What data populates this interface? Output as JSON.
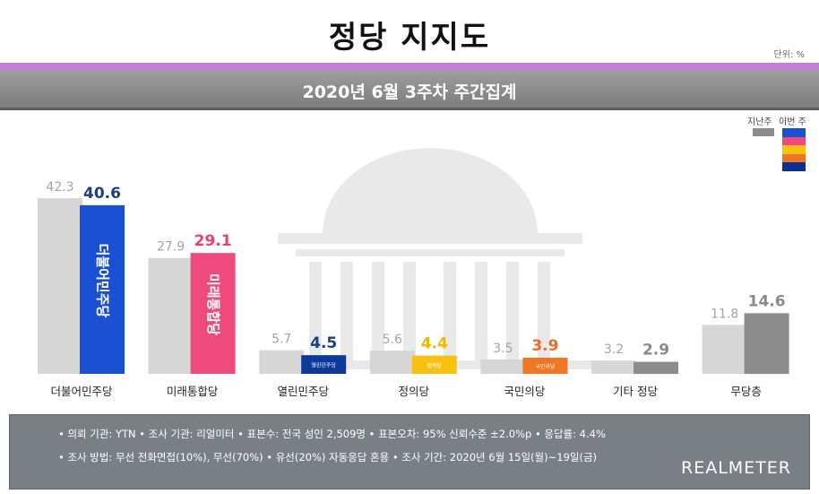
{
  "title": "정당 지지도",
  "unit": "단위: %",
  "subtitle": "2020년 6월 3주차 주간집계",
  "legend": {
    "prev_label": "지난주",
    "cur_label": "이번 주",
    "prev_color": "#8c8c8c",
    "cur_colors": [
      "#1b4fd4",
      "#ef4a7d",
      "#f7c20f",
      "#f07525",
      "#0d2f8f"
    ]
  },
  "chart_data": {
    "type": "bar",
    "categories": [
      "더불어민주당",
      "미래통합당",
      "열린민주당",
      "정의당",
      "국민의당",
      "기타 정당",
      "무당층"
    ],
    "series": [
      {
        "name": "지난주",
        "values": [
          42.3,
          27.9,
          5.7,
          5.6,
          3.5,
          3.2,
          11.8
        ]
      },
      {
        "name": "이번 주",
        "values": [
          40.6,
          29.1,
          4.5,
          4.4,
          3.9,
          2.9,
          14.6
        ]
      }
    ],
    "prev_color": "#d6d6d6",
    "cur_colors": [
      "#1b4fd4",
      "#ef4a7d",
      "#0d3a9a",
      "#f7c20f",
      "#f07525",
      "#8c8c8c",
      "#8c8c8c"
    ],
    "cur_label_colors": [
      "#1d3f7a",
      "#e8406f",
      "#1d3f7a",
      "#f2b705",
      "#ef6a1e",
      "#8a8a8a",
      "#8a8a8a"
    ],
    "bar_logo_text": [
      "더불어민주당",
      "미래통합당",
      "열린민주당",
      "정의당",
      "국민의당",
      "",
      ""
    ],
    "ylim": [
      0,
      50
    ]
  },
  "info": {
    "line1": "• 의뢰 기관: YTN  • 조사 기관: 리얼미터  • 표본수: 전국 성인 2,509명  • 표본오차: 95% 신뢰수준 ±2.0%p  • 응답률: 4.4%",
    "line2": "• 조사 방법: 무선 전화면접(10%), 무선(70%)  •  유선(20%) 자동응답 혼용  • 조사 기간: 2020년 6월 15일(월)~19일(금)",
    "brand": "REALMETER"
  }
}
